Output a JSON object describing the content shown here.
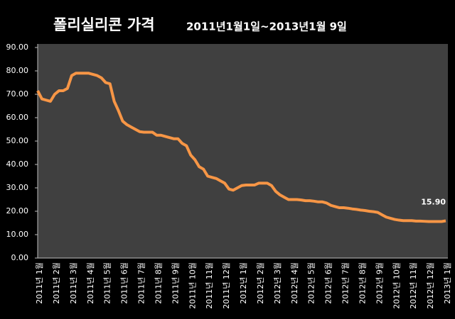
{
  "chart_data": {
    "type": "line",
    "title": "폴리실리콘 가격",
    "subtitle": "2011년1월1일~2013년1월 9일",
    "categories": [
      "2011년 1월",
      null,
      null,
      null,
      "2011년 2월",
      null,
      null,
      null,
      "2011년 3월",
      null,
      null,
      null,
      "2011년 4월",
      null,
      null,
      null,
      "2011년 5월",
      null,
      null,
      null,
      "2011년 6월",
      null,
      null,
      null,
      "2011년 7월",
      null,
      null,
      null,
      "2011년 8월",
      null,
      null,
      null,
      "2011년 9월",
      null,
      null,
      null,
      "2011년 10월",
      null,
      null,
      null,
      "2011년 11월",
      null,
      null,
      null,
      "2011년 12월",
      null,
      null,
      null,
      "2012년 1월",
      null,
      null,
      null,
      "2012년 2월",
      null,
      null,
      null,
      "2012년 3월",
      null,
      null,
      null,
      "2012년 4월",
      null,
      null,
      null,
      "2012년 5월",
      null,
      null,
      null,
      "2012년 6월",
      null,
      null,
      null,
      "2012년 7월",
      null,
      null,
      null,
      "2012년 8월",
      null,
      null,
      null,
      "2012년 9월",
      null,
      null,
      null,
      "2012년 10월",
      null,
      null,
      null,
      "2012년 11월",
      null,
      null,
      null,
      "2012년 12월",
      null,
      null,
      null,
      "2013년 1월"
    ],
    "series": [
      {
        "name": "폴리실리콘 가격",
        "color": "#f79646",
        "values": [
          71.5,
          68,
          67.5,
          67,
          70,
          71.5,
          71.5,
          72.5,
          78,
          79,
          79,
          79,
          79,
          78.5,
          78,
          77,
          75,
          74.5,
          67,
          63,
          58.5,
          57,
          56,
          55,
          54,
          53.8,
          53.8,
          53.8,
          52.5,
          52.5,
          52,
          51.5,
          51,
          51,
          49,
          48,
          44,
          42,
          39,
          38,
          35,
          34.5,
          34,
          33,
          32,
          29.5,
          29,
          30,
          31,
          31.2,
          31.2,
          31.2,
          32,
          32,
          32,
          31,
          28.5,
          27,
          26,
          25,
          25,
          25,
          24.8,
          24.5,
          24.5,
          24.3,
          24,
          24,
          23.5,
          22.5,
          22,
          21.5,
          21.5,
          21.3,
          21,
          20.8,
          20.5,
          20.3,
          20,
          19.8,
          19.5,
          18.5,
          17.5,
          17,
          16.5,
          16.2,
          16,
          16,
          16,
          15.8,
          15.8,
          15.7,
          15.6,
          15.6,
          15.6,
          15.6,
          15.9
        ],
        "value_labels": [
          null,
          null,
          null,
          null,
          null,
          null,
          null,
          null,
          null,
          null,
          null,
          null,
          null,
          null,
          null,
          null,
          null,
          null,
          null,
          null,
          null,
          null,
          null,
          null,
          null,
          null,
          null,
          null,
          null,
          null,
          null,
          null,
          null,
          null,
          null,
          null,
          null,
          null,
          null,
          null,
          null,
          null,
          null,
          null,
          null,
          null,
          null,
          null,
          null,
          null,
          null,
          null,
          null,
          null,
          null,
          null,
          null,
          null,
          null,
          null,
          null,
          null,
          null,
          null,
          null,
          null,
          null,
          null,
          null,
          null,
          null,
          null,
          null,
          null,
          null,
          null,
          null,
          null,
          null,
          null,
          null,
          null,
          null,
          null,
          null,
          null,
          null,
          null,
          null,
          null,
          null,
          null,
          null,
          null,
          null,
          null,
          "15.90"
        ]
      }
    ],
    "ylim": [
      0,
      90
    ],
    "yticks": [
      {
        "value": 0,
        "label": "0.00"
      },
      {
        "value": 10,
        "label": "10.00"
      },
      {
        "value": 20,
        "label": "20.00"
      },
      {
        "value": 30,
        "label": "30.00"
      },
      {
        "value": 40,
        "label": "40.00"
      },
      {
        "value": 50,
        "label": "50.00"
      },
      {
        "value": 60,
        "label": "60.00"
      },
      {
        "value": 70,
        "label": "70.00"
      },
      {
        "value": 80,
        "label": "80.00"
      },
      {
        "value": 90,
        "label": "90.00"
      }
    ],
    "grid": false
  }
}
